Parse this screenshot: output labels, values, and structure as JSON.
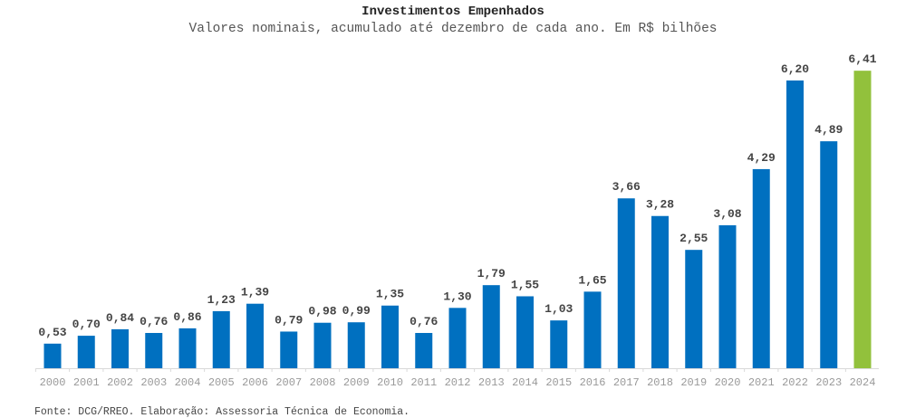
{
  "chart_data": {
    "type": "bar",
    "title": "Investimentos Empenhados",
    "subtitle": "Valores nominais, acumulado até dezembro de cada ano. Em R$ bilhões",
    "categories": [
      "2000",
      "2001",
      "2002",
      "2003",
      "2004",
      "2005",
      "2006",
      "2007",
      "2008",
      "2009",
      "2010",
      "2011",
      "2012",
      "2013",
      "2014",
      "2015",
      "2016",
      "2017",
      "2018",
      "2019",
      "2020",
      "2021",
      "2022",
      "2023",
      "2024"
    ],
    "values": [
      0.53,
      0.7,
      0.84,
      0.76,
      0.86,
      1.23,
      1.39,
      0.79,
      0.98,
      0.99,
      1.35,
      0.76,
      1.3,
      1.79,
      1.55,
      1.03,
      1.65,
      3.66,
      3.28,
      2.55,
      3.08,
      4.29,
      6.2,
      4.89,
      6.41
    ],
    "value_labels": [
      "0,53",
      "0,70",
      "0,84",
      "0,76",
      "0,86",
      "1,23",
      "1,39",
      "0,79",
      "0,98",
      "0,99",
      "1,35",
      "0,76",
      "1,30",
      "1,79",
      "1,55",
      "1,03",
      "1,65",
      "3,66",
      "3,28",
      "2,55",
      "3,08",
      "4,29",
      "6,20",
      "4,89",
      "6,41"
    ],
    "ylim": [
      0,
      6.5
    ],
    "grid": false,
    "colors": {
      "default": "#0070c0",
      "highlight": "#92c13c",
      "highlight_category": "2024"
    }
  },
  "source": "Fonte: DCG/RREO. Elaboração: Assessoria Técnica de Economia."
}
